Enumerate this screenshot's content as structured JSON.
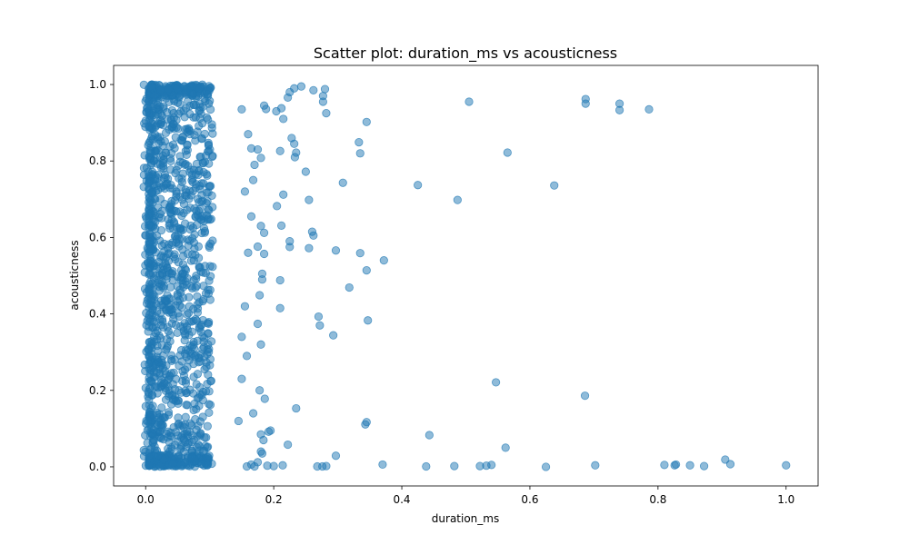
{
  "chart_data": {
    "type": "scatter",
    "title": "Scatter plot: duration_ms vs acousticness",
    "xlabel": "duration_ms",
    "ylabel": "acousticness",
    "xlim": [
      -0.05,
      1.05
    ],
    "ylim": [
      -0.05,
      1.05
    ],
    "xticks": [
      0.0,
      0.2,
      0.4,
      0.6,
      0.8,
      1.0
    ],
    "yticks": [
      0.0,
      0.2,
      0.4,
      0.6,
      0.8,
      1.0
    ],
    "xtick_labels": [
      "0.0",
      "0.2",
      "0.4",
      "0.6",
      "0.8",
      "1.0"
    ],
    "ytick_labels": [
      "0.0",
      "0.2",
      "0.4",
      "0.6",
      "0.8",
      "1.0"
    ],
    "grid": false,
    "legend": "none",
    "point_color": "#1f77b4",
    "point_alpha": 0.5,
    "dense_cluster": {
      "x_range": [
        0.005,
        0.105
      ],
      "y_range": [
        0.0,
        1.0
      ],
      "description_count": 1400
    },
    "points": [
      [
        0.505,
        0.955
      ],
      [
        0.687,
        0.962
      ],
      [
        0.687,
        0.95
      ],
      [
        0.74,
        0.95
      ],
      [
        0.74,
        0.933
      ],
      [
        0.786,
        0.935
      ],
      [
        0.565,
        0.822
      ],
      [
        0.425,
        0.737
      ],
      [
        0.487,
        0.698
      ],
      [
        0.638,
        0.736
      ],
      [
        0.372,
        0.54
      ],
      [
        0.345,
        0.514
      ],
      [
        0.318,
        0.469
      ],
      [
        0.335,
        0.559
      ],
      [
        0.297,
        0.566
      ],
      [
        0.347,
        0.383
      ],
      [
        0.27,
        0.393
      ],
      [
        0.272,
        0.37
      ],
      [
        0.293,
        0.344
      ],
      [
        0.547,
        0.221
      ],
      [
        0.686,
        0.186
      ],
      [
        0.345,
        0.117
      ],
      [
        0.343,
        0.111
      ],
      [
        0.443,
        0.083
      ],
      [
        0.235,
        0.153
      ],
      [
        0.562,
        0.05
      ],
      [
        0.297,
        0.029
      ],
      [
        0.37,
        0.006
      ],
      [
        0.438,
        0.001
      ],
      [
        0.482,
        0.002
      ],
      [
        0.522,
        0.002
      ],
      [
        0.532,
        0.003
      ],
      [
        0.54,
        0.005
      ],
      [
        0.625,
        0.0
      ],
      [
        0.702,
        0.004
      ],
      [
        0.81,
        0.005
      ],
      [
        0.826,
        0.004
      ],
      [
        0.828,
        0.006
      ],
      [
        0.85,
        0.004
      ],
      [
        0.872,
        0.002
      ],
      [
        0.905,
        0.019
      ],
      [
        0.913,
        0.007
      ],
      [
        1.0,
        0.004
      ],
      [
        0.268,
        0.001
      ],
      [
        0.276,
        0.001
      ],
      [
        0.282,
        0.002
      ],
      [
        0.214,
        0.004
      ],
      [
        0.345,
        0.902
      ],
      [
        0.333,
        0.849
      ],
      [
        0.335,
        0.82
      ],
      [
        0.308,
        0.743
      ],
      [
        0.282,
        0.925
      ],
      [
        0.277,
        0.955
      ],
      [
        0.277,
        0.97
      ],
      [
        0.262,
        0.985
      ],
      [
        0.28,
        0.988
      ],
      [
        0.243,
        0.995
      ],
      [
        0.232,
        0.99
      ],
      [
        0.225,
        0.98
      ],
      [
        0.222,
        0.966
      ],
      [
        0.212,
        0.938
      ],
      [
        0.204,
        0.93
      ],
      [
        0.215,
        0.91
      ],
      [
        0.185,
        0.945
      ],
      [
        0.188,
        0.936
      ],
      [
        0.228,
        0.86
      ],
      [
        0.232,
        0.845
      ],
      [
        0.235,
        0.822
      ],
      [
        0.233,
        0.81
      ],
      [
        0.21,
        0.826
      ],
      [
        0.25,
        0.772
      ],
      [
        0.255,
        0.698
      ],
      [
        0.215,
        0.712
      ],
      [
        0.205,
        0.682
      ],
      [
        0.212,
        0.631
      ],
      [
        0.26,
        0.615
      ],
      [
        0.262,
        0.605
      ],
      [
        0.255,
        0.572
      ],
      [
        0.225,
        0.59
      ],
      [
        0.225,
        0.575
      ],
      [
        0.18,
        0.63
      ],
      [
        0.185,
        0.612
      ],
      [
        0.175,
        0.576
      ],
      [
        0.185,
        0.557
      ],
      [
        0.21,
        0.488
      ],
      [
        0.21,
        0.415
      ],
      [
        0.182,
        0.505
      ],
      [
        0.182,
        0.49
      ],
      [
        0.178,
        0.449
      ],
      [
        0.175,
        0.374
      ],
      [
        0.18,
        0.32
      ],
      [
        0.178,
        0.2
      ],
      [
        0.186,
        0.178
      ],
      [
        0.168,
        0.14
      ],
      [
        0.195,
        0.095
      ],
      [
        0.192,
        0.092
      ],
      [
        0.18,
        0.085
      ],
      [
        0.184,
        0.07
      ],
      [
        0.222,
        0.058
      ],
      [
        0.18,
        0.04
      ],
      [
        0.182,
        0.035
      ],
      [
        0.175,
        0.012
      ],
      [
        0.165,
        0.006
      ],
      [
        0.158,
        0.001
      ],
      [
        0.17,
        0.001
      ],
      [
        0.19,
        0.003
      ],
      [
        0.2,
        0.002
      ],
      [
        0.175,
        0.83
      ],
      [
        0.165,
        0.833
      ],
      [
        0.18,
        0.808
      ],
      [
        0.17,
        0.79
      ],
      [
        0.168,
        0.75
      ],
      [
        0.15,
        0.935
      ],
      [
        0.16,
        0.87
      ],
      [
        0.155,
        0.72
      ],
      [
        0.165,
        0.655
      ],
      [
        0.16,
        0.56
      ],
      [
        0.155,
        0.42
      ],
      [
        0.15,
        0.34
      ],
      [
        0.158,
        0.29
      ],
      [
        0.15,
        0.23
      ],
      [
        0.145,
        0.12
      ]
    ]
  }
}
